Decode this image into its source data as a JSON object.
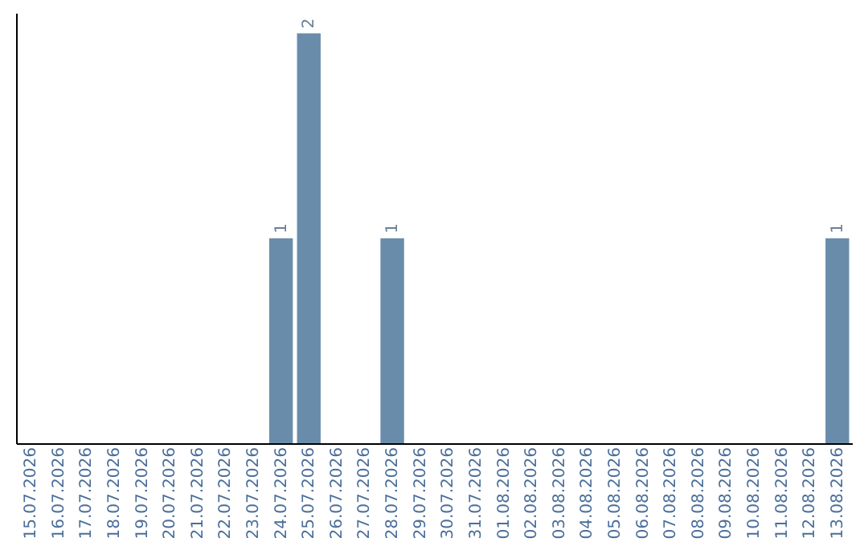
{
  "chart_data": {
    "type": "bar",
    "categories": [
      "15.07.2026",
      "16.07.2026",
      "17.07.2026",
      "18.07.2026",
      "19.07.2026",
      "20.07.2026",
      "21.07.2026",
      "22.07.2026",
      "23.07.2026",
      "24.07.2026",
      "25.07.2026",
      "26.07.2026",
      "27.07.2026",
      "28.07.2026",
      "29.07.2026",
      "30.07.2026",
      "31.07.2026",
      "01.08.2026",
      "02.08.2026",
      "03.08.2026",
      "04.08.2026",
      "05.08.2026",
      "06.08.2026",
      "07.08.2026",
      "08.08.2026",
      "09.08.2026",
      "10.08.2026",
      "11.08.2026",
      "12.08.2026",
      "13.08.2026"
    ],
    "values": [
      null,
      null,
      null,
      null,
      null,
      null,
      null,
      null,
      null,
      1,
      2,
      null,
      null,
      1,
      null,
      null,
      null,
      null,
      null,
      null,
      null,
      null,
      null,
      null,
      null,
      null,
      null,
      null,
      null,
      1
    ],
    "color": "#6a8cab",
    "ylim": [
      0,
      2.1
    ],
    "data_labels": true,
    "grid": false,
    "tick_labels": "x"
  }
}
